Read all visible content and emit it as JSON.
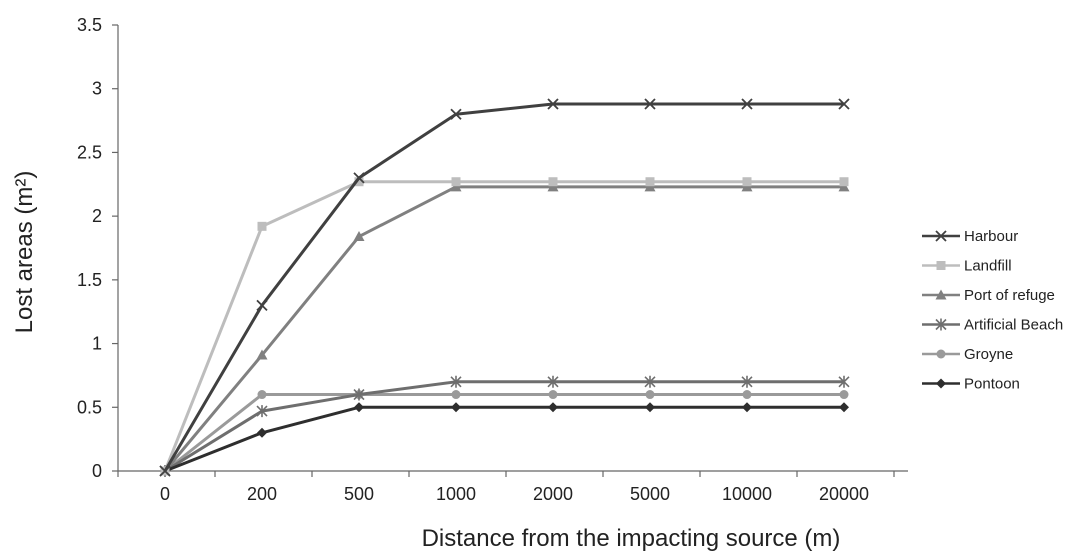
{
  "chart_data": {
    "type": "line",
    "title": "",
    "xlabel": "Distance from the impacting source (m)",
    "ylabel": "Lost areas (m²)",
    "categories": [
      "0",
      "200",
      "500",
      "1000",
      "2000",
      "5000",
      "10000",
      "20000"
    ],
    "y_ticks": [
      "0",
      "0.5",
      "1",
      "1.5",
      "2",
      "2.5",
      "3",
      "3.5"
    ],
    "ylim": [
      0,
      3.5
    ],
    "x_scale": "categorical (equally spaced)",
    "grid": false,
    "legend_position": "right",
    "series": [
      {
        "name": "Harbour",
        "values": [
          0,
          1.3,
          2.3,
          2.8,
          2.88,
          2.88,
          2.88,
          2.88
        ],
        "color": "#404040",
        "marker": "x"
      },
      {
        "name": "Landfill",
        "values": [
          0,
          1.92,
          2.27,
          2.27,
          2.27,
          2.27,
          2.27,
          2.27
        ],
        "color": "#bdbdbd",
        "marker": "square"
      },
      {
        "name": "Port of refuge",
        "values": [
          0,
          0.91,
          1.84,
          2.23,
          2.23,
          2.23,
          2.23,
          2.23
        ],
        "color": "#808080",
        "marker": "triangle"
      },
      {
        "name": "Artificial Beach",
        "values": [
          0,
          0.47,
          0.6,
          0.7,
          0.7,
          0.7,
          0.7,
          0.7
        ],
        "color": "#6e6e6e",
        "marker": "star"
      },
      {
        "name": "Groyne",
        "values": [
          0,
          0.6,
          0.6,
          0.6,
          0.6,
          0.6,
          0.6,
          0.6
        ],
        "color": "#9a9a9a",
        "marker": "circle"
      },
      {
        "name": "Pontoon",
        "values": [
          0,
          0.3,
          0.5,
          0.5,
          0.5,
          0.5,
          0.5,
          0.5
        ],
        "color": "#2e2e2e",
        "marker": "diamond"
      }
    ]
  }
}
